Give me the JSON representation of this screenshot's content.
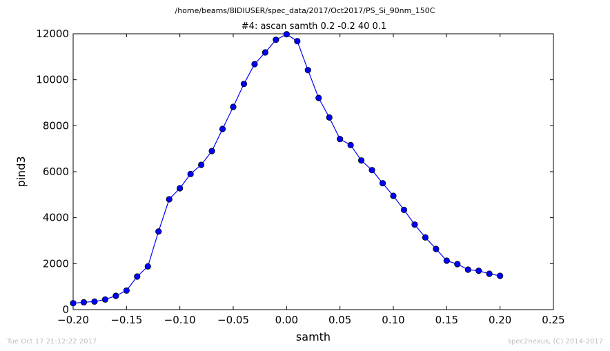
{
  "header": {
    "suptitle": "/home/beams/8IDIUSER/spec_data/2017/Oct2017/PS_Si_90nm_150C",
    "title": "#4: ascan  samth 0.2 -0.2  40 0.1"
  },
  "footer": {
    "left": "Tue Oct 17 21:12:22 2017",
    "right": "spec2nexus, (C) 2014-2017"
  },
  "chart_data": {
    "type": "line",
    "title": "#4: ascan  samth 0.2 -0.2  40 0.1",
    "xlabel": "samth",
    "ylabel": "pind3",
    "xlim": [
      -0.2,
      0.25
    ],
    "ylim": [
      0,
      12000
    ],
    "xticks": [
      -0.2,
      -0.15,
      -0.1,
      -0.05,
      0.0,
      0.05,
      0.1,
      0.15,
      0.2,
      0.25
    ],
    "xtick_labels": [
      "−0.20",
      "−0.15",
      "−0.10",
      "−0.05",
      "0.00",
      "0.05",
      "0.10",
      "0.15",
      "0.20",
      "0.25"
    ],
    "yticks": [
      0,
      2000,
      4000,
      6000,
      8000,
      10000,
      12000
    ],
    "ytick_labels": [
      "0",
      "2000",
      "4000",
      "6000",
      "8000",
      "10000",
      "12000"
    ],
    "grid": false,
    "series_color": "#0000ff",
    "marker": "circle",
    "x": [
      -0.2,
      -0.19,
      -0.18,
      -0.17,
      -0.16,
      -0.15,
      -0.14,
      -0.13,
      -0.12,
      -0.11,
      -0.1,
      -0.09,
      -0.08,
      -0.07,
      -0.06,
      -0.05,
      -0.04,
      -0.03,
      -0.02,
      -0.01,
      0.0,
      0.01,
      0.02,
      0.03,
      0.04,
      0.05,
      0.06,
      0.07,
      0.08,
      0.09,
      0.1,
      0.11,
      0.12,
      0.13,
      0.14,
      0.15,
      0.16,
      0.17,
      0.18,
      0.19,
      0.2
    ],
    "y": [
      280,
      320,
      350,
      440,
      600,
      830,
      1440,
      1880,
      3400,
      4800,
      5280,
      5900,
      6300,
      6900,
      7860,
      8820,
      9820,
      10680,
      11190,
      11740,
      11980,
      11680,
      10420,
      9210,
      8360,
      7420,
      7160,
      6490,
      6070,
      5500,
      4950,
      4340,
      3700,
      3140,
      2640,
      2130,
      1980,
      1740,
      1690,
      1560,
      1470
    ]
  }
}
